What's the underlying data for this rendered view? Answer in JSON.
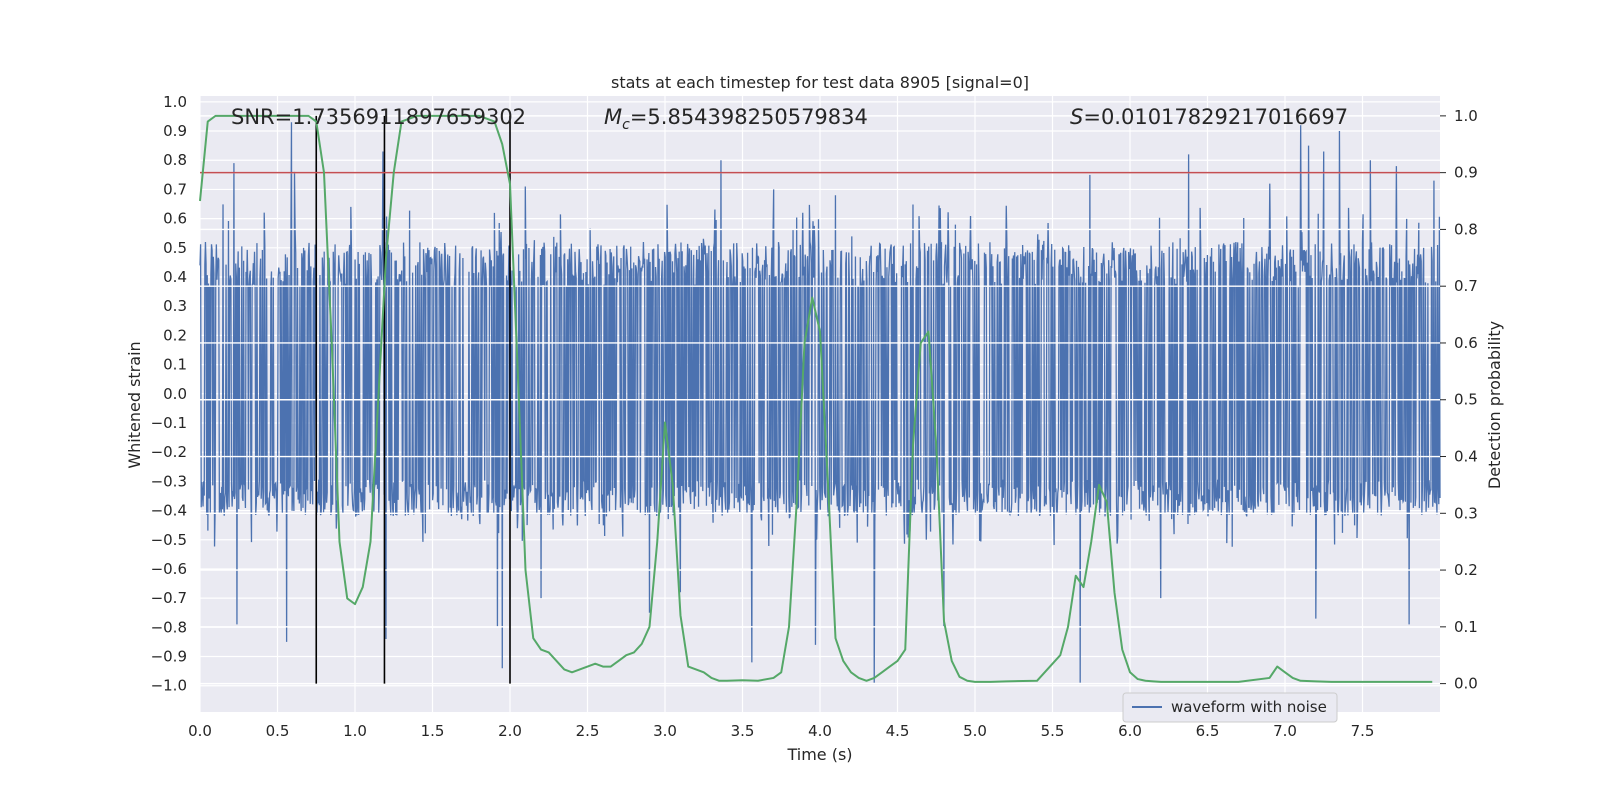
{
  "chart_data": {
    "type": "line",
    "title": "stats at each timestep for test data 8905 [signal=0]",
    "xlabel": "Time (s)",
    "ylabel_left": "Whitened strain",
    "ylabel_right": "Detection probability",
    "xlim": [
      0,
      8
    ],
    "ylim_left": [
      -1.09,
      1.02
    ],
    "ylim_right": [
      -0.05,
      1.035
    ],
    "x_ticks": [
      0.0,
      0.5,
      1.0,
      1.5,
      2.0,
      2.5,
      3.0,
      3.5,
      4.0,
      4.5,
      5.0,
      5.5,
      6.0,
      6.5,
      7.0,
      7.5
    ],
    "x_tick_labels": [
      "0.0",
      "0.5",
      "1.0",
      "1.5",
      "2.0",
      "2.5",
      "3.0",
      "3.5",
      "4.0",
      "4.5",
      "5.0",
      "5.5",
      "6.0",
      "6.5",
      "7.0",
      "7.5"
    ],
    "y_left_ticks": [
      -1.0,
      -0.9,
      -0.8,
      -0.7,
      -0.6,
      -0.5,
      -0.4,
      -0.3,
      -0.2,
      -0.1,
      0.0,
      0.1,
      0.2,
      0.3,
      0.4,
      0.5,
      0.6,
      0.7,
      0.8,
      0.9,
      1.0
    ],
    "y_left_tick_labels": [
      "−1.0",
      "−0.9",
      "−0.8",
      "−0.7",
      "−0.6",
      "−0.5",
      "−0.4",
      "−0.3",
      "−0.2",
      "−0.1",
      "0.0",
      "0.1",
      "0.2",
      "0.3",
      "0.4",
      "0.5",
      "0.6",
      "0.7",
      "0.8",
      "0.9",
      "1.0"
    ],
    "y_right_ticks": [
      0.0,
      0.1,
      0.2,
      0.3,
      0.4,
      0.5,
      0.6,
      0.7,
      0.8,
      0.9,
      1.0
    ],
    "y_right_tick_labels": [
      "0.0",
      "0.1",
      "0.2",
      "0.3",
      "0.4",
      "0.5",
      "0.6",
      "0.7",
      "0.8",
      "0.9",
      "1.0"
    ],
    "annotations": {
      "snr": "SNR=1.7356911897659302",
      "mc_symbol": "M",
      "mc_sub": "c",
      "mc_value": "=5.854398250579834",
      "s_symbol": "S",
      "s_value": "=0.01017829217016697"
    },
    "legend": {
      "label": "waveform with noise",
      "position": "lower-right"
    },
    "threshold": {
      "value": 0.9,
      "axis": "right",
      "color": "#c44e52"
    },
    "vertical_markers": [
      0.75,
      1.19,
      2.0
    ],
    "waveform": {
      "name": "waveform with noise",
      "color": "#4c72b0",
      "x_range": [
        0,
        8
      ],
      "samples": 2048,
      "band": [
        -0.42,
        0.52
      ],
      "spikes": [
        {
          "t": 0.59,
          "v": 0.93
        },
        {
          "t": 1.18,
          "v": 0.83
        },
        {
          "t": 1.2,
          "v": 0.88
        },
        {
          "t": 0.22,
          "v": 0.79
        },
        {
          "t": 0.61,
          "v": 0.76
        },
        {
          "t": 2.1,
          "v": 0.71
        },
        {
          "t": 3.36,
          "v": 0.8
        },
        {
          "t": 4.35,
          "v": 0.82
        },
        {
          "t": 5.74,
          "v": 0.75
        },
        {
          "t": 6.38,
          "v": 0.82
        },
        {
          "t": 7.1,
          "v": 0.92
        },
        {
          "t": 7.15,
          "v": 0.85
        },
        {
          "t": 7.25,
          "v": 0.83
        },
        {
          "t": 7.35,
          "v": 0.9
        },
        {
          "t": 7.55,
          "v": 0.8
        },
        {
          "t": 7.72,
          "v": 0.78
        },
        {
          "t": 7.96,
          "v": 0.73
        },
        {
          "t": 3.7,
          "v": 0.7
        },
        {
          "t": 4.1,
          "v": 0.68
        },
        {
          "t": 6.9,
          "v": 0.72
        },
        {
          "t": 0.56,
          "v": -0.85
        },
        {
          "t": 0.24,
          "v": -0.79
        },
        {
          "t": 1.2,
          "v": -0.84
        },
        {
          "t": 1.92,
          "v": -0.8
        },
        {
          "t": 1.95,
          "v": -0.94
        },
        {
          "t": 3.56,
          "v": -0.92
        },
        {
          "t": 3.97,
          "v": -0.86
        },
        {
          "t": 4.35,
          "v": -0.99
        },
        {
          "t": 5.68,
          "v": -0.99
        },
        {
          "t": 7.2,
          "v": -0.77
        },
        {
          "t": 7.8,
          "v": -0.79
        },
        {
          "t": 2.2,
          "v": -0.7
        },
        {
          "t": 2.9,
          "v": -0.75
        },
        {
          "t": 4.8,
          "v": -0.8
        },
        {
          "t": 6.2,
          "v": -0.7
        },
        {
          "t": 3.1,
          "v": -0.68
        }
      ]
    },
    "detection_probability": {
      "color": "#55a868",
      "x": [
        0.0,
        0.05,
        0.1,
        0.2,
        0.4,
        0.6,
        0.7,
        0.75,
        0.8,
        0.85,
        0.9,
        0.95,
        1.0,
        1.05,
        1.1,
        1.15,
        1.2,
        1.25,
        1.3,
        1.4,
        1.6,
        1.8,
        1.9,
        1.95,
        2.0,
        2.05,
        2.1,
        2.15,
        2.2,
        2.25,
        2.3,
        2.35,
        2.4,
        2.45,
        2.5,
        2.55,
        2.6,
        2.65,
        2.7,
        2.75,
        2.8,
        2.85,
        2.9,
        2.95,
        3.0,
        3.05,
        3.1,
        3.15,
        3.2,
        3.25,
        3.3,
        3.35,
        3.4,
        3.5,
        3.6,
        3.7,
        3.75,
        3.8,
        3.85,
        3.9,
        3.95,
        4.0,
        4.05,
        4.1,
        4.15,
        4.2,
        4.25,
        4.3,
        4.35,
        4.4,
        4.45,
        4.5,
        4.55,
        4.6,
        4.65,
        4.7,
        4.75,
        4.8,
        4.85,
        4.9,
        4.95,
        5.0,
        5.05,
        5.1,
        5.2,
        5.4,
        5.55,
        5.6,
        5.65,
        5.7,
        5.75,
        5.8,
        5.85,
        5.9,
        5.95,
        6.0,
        6.05,
        6.1,
        6.15,
        6.2,
        6.3,
        6.5,
        6.7,
        6.9,
        6.95,
        7.0,
        7.05,
        7.1,
        7.2,
        7.3,
        7.5,
        7.7,
        7.9,
        7.95
      ],
      "y": [
        0.85,
        0.99,
        1.0,
        1.0,
        1.0,
        1.0,
        1.0,
        0.99,
        0.9,
        0.6,
        0.25,
        0.15,
        0.14,
        0.17,
        0.25,
        0.5,
        0.75,
        0.9,
        0.99,
        1.0,
        1.0,
        1.0,
        0.99,
        0.95,
        0.88,
        0.55,
        0.2,
        0.08,
        0.06,
        0.055,
        0.04,
        0.025,
        0.02,
        0.025,
        0.03,
        0.035,
        0.03,
        0.03,
        0.04,
        0.05,
        0.055,
        0.07,
        0.1,
        0.25,
        0.46,
        0.35,
        0.12,
        0.03,
        0.025,
        0.02,
        0.01,
        0.005,
        0.005,
        0.006,
        0.005,
        0.01,
        0.02,
        0.1,
        0.32,
        0.6,
        0.68,
        0.62,
        0.36,
        0.08,
        0.04,
        0.02,
        0.01,
        0.005,
        0.01,
        0.02,
        0.03,
        0.04,
        0.06,
        0.42,
        0.6,
        0.62,
        0.42,
        0.11,
        0.04,
        0.012,
        0.005,
        0.003,
        0.003,
        0.003,
        0.004,
        0.005,
        0.05,
        0.1,
        0.19,
        0.17,
        0.25,
        0.35,
        0.32,
        0.16,
        0.06,
        0.02,
        0.008,
        0.005,
        0.004,
        0.003,
        0.003,
        0.003,
        0.003,
        0.01,
        0.03,
        0.02,
        0.01,
        0.005,
        0.004,
        0.003,
        0.003,
        0.003,
        0.003,
        0.003
      ]
    }
  }
}
